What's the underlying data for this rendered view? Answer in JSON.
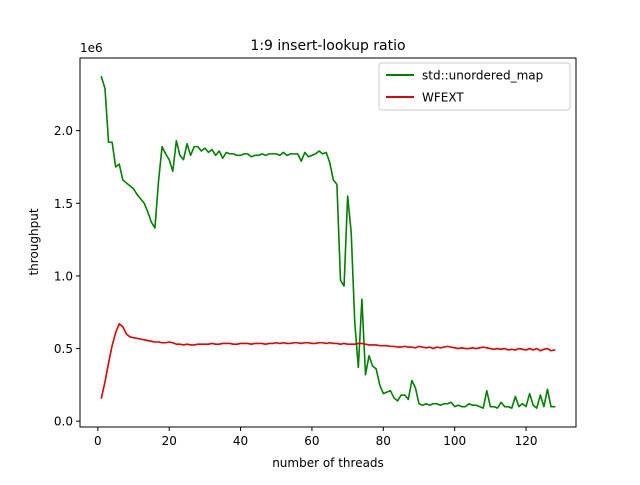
{
  "chart_data": {
    "type": "line",
    "title": "1:9 insert-lookup ratio",
    "xlabel": "number of threads",
    "ylabel": "throughput",
    "y_offset_label": "1e6",
    "xlim": [
      -5,
      134
    ],
    "ylim": [
      -0.04,
      2.5
    ],
    "xticks": [
      0,
      20,
      40,
      60,
      80,
      100,
      120
    ],
    "yticks": [
      0.0,
      0.5,
      1.0,
      1.5,
      2.0
    ],
    "ytick_labels": [
      "0.0",
      "0.5",
      "1.0",
      "1.5",
      "2.0"
    ],
    "grid": false,
    "legend_position": "upper right",
    "series": [
      {
        "name": "std::unordered_map",
        "color": "#008000",
        "x": [
          1,
          2,
          3,
          4,
          5,
          6,
          7,
          8,
          9,
          10,
          11,
          12,
          13,
          14,
          15,
          16,
          17,
          18,
          19,
          20,
          21,
          22,
          23,
          24,
          25,
          26,
          27,
          28,
          29,
          30,
          31,
          32,
          33,
          34,
          35,
          36,
          37,
          38,
          39,
          40,
          41,
          42,
          43,
          44,
          45,
          46,
          47,
          48,
          49,
          50,
          51,
          52,
          53,
          54,
          55,
          56,
          57,
          58,
          59,
          60,
          61,
          62,
          63,
          64,
          65,
          66,
          67,
          68,
          69,
          70,
          71,
          72,
          73,
          74,
          75,
          76,
          77,
          78,
          79,
          80,
          81,
          82,
          83,
          84,
          85,
          86,
          87,
          88,
          89,
          90,
          91,
          92,
          93,
          94,
          95,
          96,
          97,
          98,
          99,
          100,
          101,
          102,
          103,
          104,
          105,
          106,
          107,
          108,
          109,
          110,
          111,
          112,
          113,
          114,
          115,
          116,
          117,
          118,
          119,
          120,
          121,
          122,
          123,
          124,
          125,
          126,
          127,
          128
        ],
        "values": [
          2.37,
          2.29,
          1.92,
          1.92,
          1.75,
          1.77,
          1.66,
          1.64,
          1.62,
          1.6,
          1.56,
          1.53,
          1.5,
          1.44,
          1.37,
          1.33,
          1.65,
          1.89,
          1.84,
          1.8,
          1.72,
          1.93,
          1.83,
          1.8,
          1.91,
          1.83,
          1.89,
          1.89,
          1.86,
          1.88,
          1.85,
          1.87,
          1.83,
          1.86,
          1.81,
          1.85,
          1.84,
          1.84,
          1.83,
          1.83,
          1.84,
          1.84,
          1.82,
          1.83,
          1.83,
          1.84,
          1.83,
          1.84,
          1.84,
          1.84,
          1.83,
          1.85,
          1.83,
          1.84,
          1.84,
          1.84,
          1.79,
          1.85,
          1.82,
          1.83,
          1.84,
          1.86,
          1.84,
          1.85,
          1.78,
          1.66,
          1.63,
          0.97,
          0.93,
          1.55,
          1.3,
          0.68,
          0.37,
          0.84,
          0.32,
          0.45,
          0.38,
          0.36,
          0.25,
          0.19,
          0.2,
          0.21,
          0.16,
          0.14,
          0.18,
          0.18,
          0.15,
          0.28,
          0.23,
          0.12,
          0.11,
          0.12,
          0.11,
          0.12,
          0.12,
          0.11,
          0.12,
          0.12,
          0.13,
          0.1,
          0.11,
          0.1,
          0.1,
          0.12,
          0.11,
          0.11,
          0.1,
          0.09,
          0.21,
          0.1,
          0.1,
          0.09,
          0.13,
          0.1,
          0.1,
          0.09,
          0.17,
          0.1,
          0.12,
          0.1,
          0.19,
          0.11,
          0.09,
          0.18,
          0.1,
          0.22,
          0.1,
          0.1
        ]
      },
      {
        "name": "WFEXT",
        "color": "#e00000",
        "x": [
          1,
          2,
          3,
          4,
          5,
          6,
          7,
          8,
          9,
          10,
          11,
          12,
          13,
          14,
          15,
          16,
          17,
          18,
          19,
          20,
          21,
          22,
          23,
          24,
          25,
          26,
          27,
          28,
          29,
          30,
          31,
          32,
          33,
          34,
          35,
          36,
          37,
          38,
          39,
          40,
          41,
          42,
          43,
          44,
          45,
          46,
          47,
          48,
          49,
          50,
          51,
          52,
          53,
          54,
          55,
          56,
          57,
          58,
          59,
          60,
          61,
          62,
          63,
          64,
          65,
          66,
          67,
          68,
          69,
          70,
          71,
          72,
          73,
          74,
          75,
          76,
          77,
          78,
          79,
          80,
          81,
          82,
          83,
          84,
          85,
          86,
          87,
          88,
          89,
          90,
          91,
          92,
          93,
          94,
          95,
          96,
          97,
          98,
          99,
          100,
          101,
          102,
          103,
          104,
          105,
          106,
          107,
          108,
          109,
          110,
          111,
          112,
          113,
          114,
          115,
          116,
          117,
          118,
          119,
          120,
          121,
          122,
          123,
          124,
          125,
          126,
          127,
          128
        ],
        "values": [
          0.16,
          0.27,
          0.4,
          0.52,
          0.61,
          0.67,
          0.65,
          0.6,
          0.58,
          0.575,
          0.57,
          0.565,
          0.56,
          0.555,
          0.55,
          0.545,
          0.545,
          0.54,
          0.54,
          0.545,
          0.54,
          0.53,
          0.53,
          0.525,
          0.53,
          0.525,
          0.525,
          0.53,
          0.53,
          0.53,
          0.53,
          0.535,
          0.53,
          0.53,
          0.535,
          0.535,
          0.535,
          0.53,
          0.53,
          0.535,
          0.535,
          0.535,
          0.53,
          0.535,
          0.535,
          0.535,
          0.53,
          0.535,
          0.535,
          0.54,
          0.535,
          0.54,
          0.535,
          0.535,
          0.54,
          0.54,
          0.535,
          0.54,
          0.54,
          0.535,
          0.535,
          0.54,
          0.54,
          0.535,
          0.54,
          0.535,
          0.535,
          0.53,
          0.535,
          0.53,
          0.53,
          0.53,
          0.535,
          0.535,
          0.53,
          0.525,
          0.525,
          0.525,
          0.52,
          0.52,
          0.52,
          0.515,
          0.515,
          0.51,
          0.51,
          0.515,
          0.51,
          0.51,
          0.505,
          0.515,
          0.51,
          0.505,
          0.51,
          0.5,
          0.51,
          0.505,
          0.51,
          0.515,
          0.51,
          0.505,
          0.5,
          0.505,
          0.5,
          0.5,
          0.505,
          0.5,
          0.505,
          0.51,
          0.505,
          0.5,
          0.495,
          0.5,
          0.495,
          0.5,
          0.49,
          0.495,
          0.49,
          0.5,
          0.495,
          0.49,
          0.5,
          0.49,
          0.5,
          0.485,
          0.495,
          0.5,
          0.485,
          0.49
        ]
      }
    ]
  }
}
